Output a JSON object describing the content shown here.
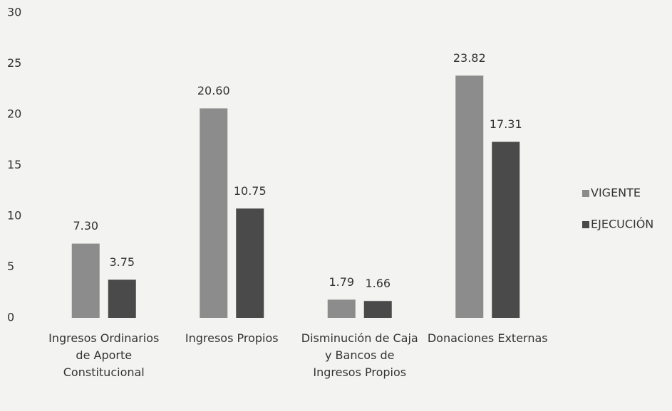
{
  "chart_data": {
    "type": "bar",
    "categories": [
      "Ingresos Ordinarios de Aporte Constitucional",
      "Ingresos Propios",
      "Disminución de Caja y Bancos de Ingresos Propios",
      "Donaciones Externas"
    ],
    "series": [
      {
        "name": "VIGENTE",
        "color": "#8c8c8c",
        "values": [
          7.3,
          20.6,
          1.79,
          23.82
        ],
        "value_labels": [
          "7.30",
          "20.60",
          "1.79",
          "23.82"
        ]
      },
      {
        "name": "EJECUCIÓN",
        "color": "#4a4a4a",
        "values": [
          3.75,
          10.75,
          1.66,
          17.31
        ],
        "value_labels": [
          "3.75",
          "10.75",
          "1.66",
          "17.31"
        ]
      }
    ],
    "ylim": [
      0,
      30
    ],
    "yticks": [
      0,
      5,
      10,
      15,
      20,
      25,
      30
    ],
    "grid": false,
    "legend": "right"
  }
}
